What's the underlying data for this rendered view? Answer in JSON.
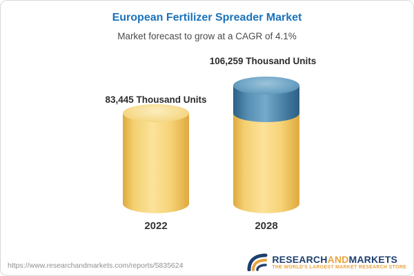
{
  "title": "European Fertilizer Spreader Market",
  "subtitle": "Market forecast to grow at a CAGR of 4.1%",
  "chart_data": {
    "type": "bar",
    "categories": [
      "2022",
      "2028"
    ],
    "values": [
      83445,
      106259
    ],
    "value_labels": [
      "83,445 Thousand Units",
      "106,259 Thousand Units"
    ],
    "unit": "Thousand Units",
    "title": "European Fertilizer Spreader Market",
    "subtitle": "Market forecast to grow at a CAGR of 4.1%",
    "cagr": "4.1%",
    "legend": "none",
    "gridlines": false,
    "layout_hint": "3d-cylinder bars, growth segment on 2028 highlighted in blue",
    "colors": {
      "bar": "#f2cd68",
      "bar_top": "#f8e09b",
      "growth_segment": "#4a81a6",
      "growth_segment_top": "#7fb2d0",
      "title": "#1a72ba"
    }
  },
  "footer": {
    "url": "https://www.researchandmarkets.com/reports/5835624",
    "logo": {
      "research": "RESEARCH",
      "and": "AND",
      "markets": "MARKETS",
      "tagline": "THE WORLD'S LARGEST MARKET RESEARCH STORE"
    }
  }
}
